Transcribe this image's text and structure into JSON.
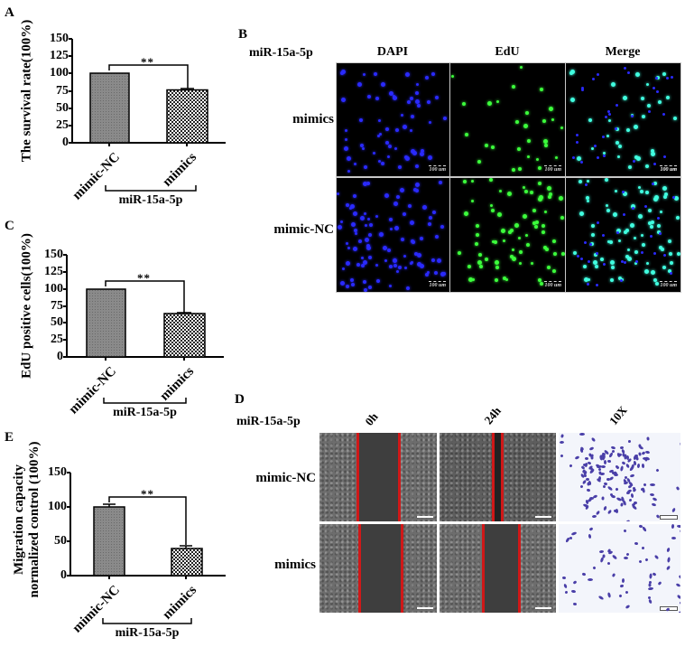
{
  "panels": {
    "A": {
      "letter": "A"
    },
    "B": {
      "letter": "B"
    },
    "C": {
      "letter": "C"
    },
    "D": {
      "letter": "D"
    },
    "E": {
      "letter": "E"
    }
  },
  "chart_data": [
    {
      "id": "A",
      "type": "bar",
      "title": "",
      "ylabel": "The survival rate(100%)",
      "xlabel": "",
      "group_label": "miR-15a-5p",
      "categories": [
        "mimic-NC",
        "mimics"
      ],
      "values": [
        100,
        76
      ],
      "errors": [
        0,
        2
      ],
      "yticks": [
        "0",
        "25",
        "50",
        "75",
        "100",
        "125",
        "150"
      ],
      "ylim": [
        0,
        150
      ],
      "significance": "**",
      "patterns": [
        "dense-gray-hatch",
        "checkered"
      ],
      "grid": false
    },
    {
      "id": "C",
      "type": "bar",
      "title": "",
      "ylabel": "EdU positive cells(100%)",
      "xlabel": "",
      "group_label": "miR-15a-5p",
      "categories": [
        "mimic-NC",
        "mimics"
      ],
      "values": [
        100,
        64
      ],
      "errors": [
        0,
        1.5
      ],
      "yticks": [
        "0",
        "25",
        "50",
        "75",
        "100",
        "125",
        "150"
      ],
      "ylim": [
        0,
        150
      ],
      "significance": "**",
      "patterns": [
        "dense-gray-hatch",
        "checkered"
      ],
      "grid": false
    },
    {
      "id": "E",
      "type": "bar",
      "title": "",
      "ylabel": "Migration capacity normalized control (100%)",
      "ylabel_lines": [
        "Migration capacity",
        "normalized control (100%)"
      ],
      "xlabel": "",
      "group_label": "miR-15a-5p",
      "categories": [
        "mimic-NC",
        "mimics"
      ],
      "values": [
        100,
        39
      ],
      "errors": [
        3,
        4
      ],
      "yticks": [
        "0",
        "50",
        "100",
        "150"
      ],
      "ylim": [
        0,
        150
      ],
      "significance": "**",
      "patterns": [
        "dense-gray-hatch",
        "checkered"
      ],
      "grid": false
    }
  ],
  "panel_B": {
    "row_header": "miR-15a-5p",
    "columns": [
      "DAPI",
      "EdU",
      "Merge"
    ],
    "rows": [
      "mimics",
      "mimic-NC"
    ],
    "scale_bar": "100 um",
    "colors": {
      "DAPI": "#2a2aff",
      "EdU": "#3cff3c",
      "Merge": "#40ffe0",
      "background": "#000000"
    }
  },
  "panel_D": {
    "row_header": "miR-15a-5p",
    "columns": [
      "0h",
      "24h",
      "10X"
    ],
    "rows": [
      "mimic-NC",
      "mimics"
    ],
    "colors": {
      "wound_line": "#d01818",
      "stain": "#4a3fa8"
    }
  }
}
